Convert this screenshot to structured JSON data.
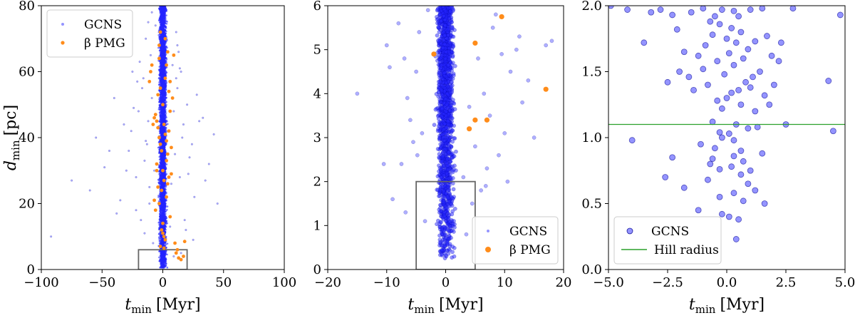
{
  "chart_data": [
    {
      "type": "scatter",
      "id": "panel-a",
      "xlabel": "t",
      "xlabel_sub": "min",
      "xlabel_unit": "[Myr]",
      "ylabel": "d",
      "ylabel_sub": "min",
      "ylabel_unit": "[pc]",
      "xlim": [
        -100,
        100
      ],
      "ylim": [
        0,
        80
      ],
      "xticks": [
        -100,
        -50,
        0,
        50,
        100
      ],
      "yticks": [
        0,
        20,
        40,
        60,
        80
      ],
      "xtick_labels": [
        "−100",
        "−50",
        "0",
        "50",
        "100"
      ],
      "ytick_labels": [
        "0",
        "20",
        "40",
        "60",
        "80"
      ],
      "legend_position": "top-left",
      "legend": [
        {
          "label": "GCNS",
          "marker": "small-dot",
          "color": "#4d4dff"
        },
        {
          "label": "β PMG",
          "marker": "dot",
          "color": "#ff8c1a"
        }
      ],
      "zoom_box": {
        "x": [
          -20,
          20
        ],
        "y": [
          0,
          6
        ]
      },
      "series": [
        {
          "name": "GCNS",
          "color": "#2020ff",
          "core": {
            "x_center": 0,
            "x_halfwidth": 5,
            "y_range": [
              0.5,
              80
            ]
          },
          "x": [
            -92,
            -75,
            -60,
            -55,
            -48,
            -40,
            -35,
            -32,
            -28,
            -25,
            -22,
            -20,
            -18,
            -16,
            -15,
            -14,
            -12,
            -11,
            -10,
            -9,
            -8,
            -22,
            -26,
            -30,
            -17,
            -13,
            -19,
            -24,
            42,
            38,
            30,
            26,
            22,
            20,
            18,
            16,
            15,
            14,
            12,
            11,
            10,
            9,
            8,
            45,
            35,
            28,
            24,
            19,
            17,
            13,
            -38,
            -44,
            -21,
            21,
            25,
            33,
            -12,
            12,
            -15,
            15,
            -9,
            9,
            -7,
            7,
            -6,
            6,
            -11,
            11,
            -14,
            14
          ],
          "y": [
            10,
            27,
            24,
            40,
            31,
            52,
            21,
            44,
            36,
            60,
            28,
            48,
            15,
            58,
            33,
            70,
            45,
            25,
            65,
            52,
            8,
            18,
            42,
            30,
            55,
            38,
            63,
            49,
            41,
            32,
            45,
            22,
            34,
            50,
            15,
            40,
            60,
            28,
            55,
            72,
            35,
            48,
            62,
            20,
            27,
            53,
            38,
            12,
            44,
            66,
            17,
            36,
            57,
            29,
            9,
            46,
            75,
            68,
            11,
            5,
            78,
            4,
            30,
            26,
            74,
            13,
            20,
            58,
            39,
            61
          ]
        },
        {
          "name": "β PMG",
          "color": "#ff8c1a",
          "x": [
            -6,
            -5,
            -4,
            -3,
            -2,
            -1,
            0,
            1,
            2,
            3,
            4,
            5,
            -8,
            -7,
            6,
            7,
            8,
            -2,
            2,
            -5,
            5,
            -4,
            4,
            -3,
            3,
            -6,
            6,
            0,
            -1,
            1,
            10,
            11,
            12,
            17,
            -10,
            -9,
            9,
            -11,
            4,
            -3,
            2,
            -2,
            0,
            1,
            -1,
            3,
            13,
            -4,
            5,
            -5,
            7,
            -7,
            0,
            2,
            -2,
            18,
            15,
            3,
            -3,
            1,
            6
          ],
          "y": [
            47,
            45,
            43,
            40,
            38,
            36,
            50,
            44,
            41,
            39,
            35,
            42,
            44,
            46,
            48,
            37,
            52,
            55,
            58,
            30,
            28,
            25,
            26,
            20,
            22,
            18,
            16,
            14,
            12,
            10,
            8,
            5,
            6,
            4,
            60,
            62,
            65,
            57,
            66,
            68,
            70,
            72,
            30,
            27,
            24,
            33,
            3.5,
            53,
            54,
            32,
            29,
            21,
            11,
            9,
            7,
            8.5,
            3,
            62,
            64,
            6.5,
            57
          ]
        }
      ]
    },
    {
      "type": "scatter",
      "id": "panel-b",
      "xlabel": "t",
      "xlabel_sub": "min",
      "xlabel_unit": "[Myr]",
      "xlim": [
        -20,
        20
      ],
      "ylim": [
        0,
        6
      ],
      "xticks": [
        -20,
        -10,
        0,
        10,
        20
      ],
      "yticks": [
        0,
        1,
        2,
        3,
        4,
        5,
        6
      ],
      "xtick_labels": [
        "−20",
        "−10",
        "0",
        "10",
        "20"
      ],
      "ytick_labels": [
        "0",
        "1",
        "2",
        "3",
        "4",
        "5",
        "6"
      ],
      "legend_position": "bottom-right",
      "legend": [
        {
          "label": "GCNS",
          "marker": "small-dot",
          "color": "#4d4dff"
        },
        {
          "label": "β PMG",
          "marker": "dot",
          "color": "#ff8c1a"
        }
      ],
      "zoom_box": {
        "x": [
          -5,
          5
        ],
        "y": [
          0,
          2
        ]
      },
      "series": [
        {
          "name": "GCNS",
          "color": "#2020ff",
          "core": {
            "x_center": 0,
            "x_halfwidth": 2.2,
            "y_range": [
              0.2,
              6
            ]
          },
          "x": [
            -15,
            -10,
            -9.5,
            -8,
            -7,
            -6.5,
            -6,
            -5.5,
            -5,
            -4.8,
            -4.5,
            -4,
            17,
            18,
            15,
            14,
            13,
            12,
            11,
            10,
            9,
            8,
            7.5,
            7,
            6.5,
            6,
            5.5,
            5,
            4.5,
            4,
            -7.5,
            -9,
            8.5,
            9.5,
            12.5,
            -3.5,
            3.5,
            -3,
            3,
            6.8,
            -6.8,
            10.5,
            -10.5
          ],
          "y": [
            4.0,
            5.1,
            4.6,
            5.6,
            4.8,
            3.9,
            3.4,
            2.9,
            4.5,
            2.6,
            5.4,
            3.1,
            5.1,
            5.2,
            3.0,
            4.3,
            3.8,
            5.0,
            4.5,
            3.1,
            2.6,
            5.5,
            3.5,
            2.3,
            4.0,
            1.8,
            4.8,
            2.8,
            1.5,
            3.7,
            2.4,
            1.6,
            5.8,
            4.9,
            5.3,
            1.1,
            0.8,
            5.9,
            2.1,
            1.9,
            1.3,
            2.0,
            2.4
          ]
        },
        {
          "name": "β PMG",
          "color": "#ff8c1a",
          "x": [
            -2,
            5,
            9.5,
            4,
            5,
            7,
            17
          ],
          "y": [
            4.9,
            5.15,
            5.75,
            3.2,
            3.4,
            3.4,
            4.1
          ]
        }
      ]
    },
    {
      "type": "scatter",
      "id": "panel-c",
      "xlabel": "t",
      "xlabel_sub": "min",
      "xlabel_unit": "[Myr]",
      "xlim": [
        -5,
        5
      ],
      "ylim": [
        0,
        2
      ],
      "xticks": [
        -5,
        -2.5,
        0,
        2.5,
        5
      ],
      "yticks": [
        0,
        0.5,
        1,
        1.5,
        2
      ],
      "xtick_labels": [
        "−5.0",
        "−2.5",
        "0.0",
        "2.5",
        "5.0"
      ],
      "ytick_labels": [
        "0.0",
        "0.5",
        "1.0",
        "1.5",
        "2.0"
      ],
      "legend_position": "bottom-left",
      "legend": [
        {
          "label": "GCNS",
          "marker": "dot",
          "color": "#4d4dff"
        },
        {
          "label": "Hill radius",
          "marker": "line",
          "color": "#2ca02c"
        }
      ],
      "hline": {
        "label": "Hill radius",
        "y": 1.1,
        "color": "#2ca02c"
      },
      "series": [
        {
          "name": "GCNS",
          "color": "#4d4dff",
          "x": [
            -4.9,
            -4.2,
            -3.2,
            -2.8,
            -2.3,
            -1.5,
            -1.0,
            -0.5,
            -0.2,
            0.3,
            0.5,
            1.0,
            1.5,
            2.8,
            4.8,
            -0.7,
            -0.3,
            0.2,
            0.6,
            -2.1,
            -0.6,
            0.0,
            0.4,
            -0.9,
            1.2,
            1.7,
            2.3,
            -1.8,
            0.9,
            -1.2,
            0.1,
            0.7,
            -0.4,
            1.9,
            2.2,
            -2.0,
            0.3,
            -1.0,
            1.4,
            -0.1,
            -3.5,
            -1.6,
            1.1,
            0.8,
            -0.8,
            1.0,
            0.5,
            2.0,
            1.6,
            0.0,
            -0.4,
            0.2,
            0.6,
            -0.2,
            1.2,
            1.8,
            -2.5,
            -1.4,
            0.4,
            1.3,
            -0.6,
            -0.3,
            0.1,
            0.9,
            4.5,
            2.5,
            -0.2,
            0.3,
            -1.1,
            -0.5,
            0.6,
            1.5,
            -4.0,
            -2.3,
            4.3,
            0.7,
            -0.7,
            0.2,
            -2.6,
            0.6,
            -1.8,
            1.2,
            0.3,
            -0.3,
            0.7,
            1.6,
            -0.2,
            0.1,
            0.5,
            -1.2,
            -0.8,
            0.9,
            1.0,
            -0.6,
            0.3,
            -0.3,
            0.4
          ],
          "y": [
            2.0,
            1.97,
            1.95,
            1.97,
            1.93,
            1.95,
            1.98,
            1.92,
            1.97,
            1.96,
            1.92,
            1.97,
            1.98,
            1.98,
            1.93,
            1.88,
            1.86,
            1.83,
            1.8,
            1.82,
            1.78,
            1.75,
            1.72,
            1.7,
            1.73,
            1.77,
            1.72,
            1.65,
            1.67,
            1.62,
            1.64,
            1.6,
            1.58,
            1.62,
            1.58,
            1.5,
            1.55,
            1.52,
            1.5,
            1.48,
            1.72,
            1.46,
            1.46,
            1.42,
            1.4,
            1.38,
            1.36,
            1.4,
            1.32,
            1.3,
            1.28,
            1.34,
            1.25,
            1.22,
            1.2,
            1.25,
            1.42,
            1.36,
            1.1,
            1.08,
            1.12,
            1.04,
            1.03,
            1.07,
            1.05,
            1.1,
            1.0,
            0.98,
            0.95,
            0.92,
            0.9,
            0.88,
            0.98,
            0.85,
            1.43,
            0.82,
            0.8,
            0.78,
            0.7,
            0.72,
            0.62,
            0.6,
            0.58,
            0.55,
            0.52,
            0.5,
            0.42,
            0.4,
            0.38,
            0.45,
            0.68,
            0.65,
            0.75,
            0.84,
            0.86,
            0.76,
            0.23
          ]
        }
      ]
    }
  ]
}
